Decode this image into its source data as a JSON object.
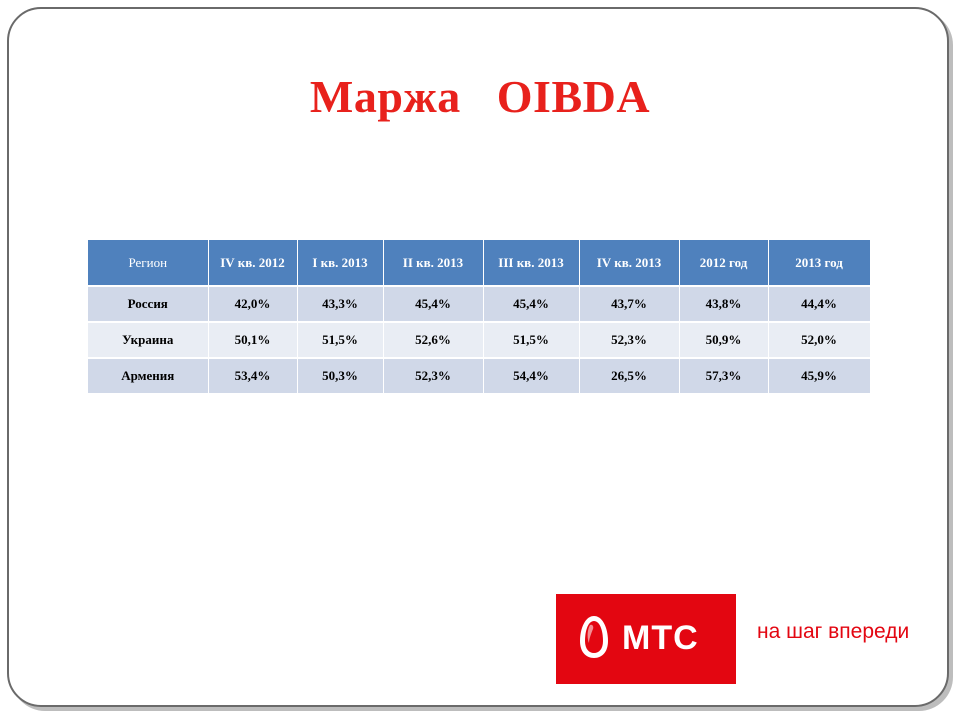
{
  "slide": {
    "title": "Маржа   OIBDA"
  },
  "table": {
    "headers": [
      "Регион",
      "IV кв. 2012",
      "I кв. 2013",
      "II кв. 2013",
      "III кв. 2013",
      "IV кв. 2013",
      "2012 год",
      "2013 год"
    ],
    "rows": [
      [
        "Россия",
        "42,0%",
        "43,3%",
        "45,4%",
        "45,4%",
        "43,7%",
        "43,8%",
        "44,4%"
      ],
      [
        "Украина",
        "50,1%",
        "51,5%",
        "52,6%",
        "51,5%",
        "52,3%",
        "50,9%",
        "52,0%"
      ],
      [
        "Армения",
        "53,4%",
        "50,3%",
        "52,3%",
        "54,4%",
        "26,5%",
        "57,3%",
        "45,9%"
      ]
    ]
  },
  "logo": {
    "brand": "МТС",
    "slogan": "на шаг впереди",
    "icon": "egg-icon"
  },
  "colors": {
    "title": "#e8211c",
    "header_bg": "#4f81bd",
    "row_odd": "#d0d8e8",
    "row_even": "#e9edf4",
    "brand_red": "#e30611"
  }
}
